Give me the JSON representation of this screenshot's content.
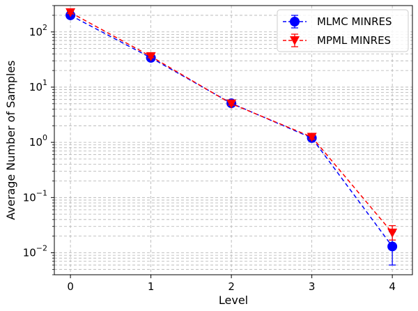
{
  "chart_data": {
    "type": "line",
    "title": "",
    "xlabel": "Level",
    "ylabel": "Average Number of Samples",
    "yscale": "log",
    "grid": true,
    "grid_style": "dashed",
    "legend_position": "top-right",
    "x": [
      0,
      1,
      2,
      3,
      4
    ],
    "x_ticks": [
      "0",
      "1",
      "2",
      "3",
      "4"
    ],
    "xlim": [
      -0.2,
      4.25
    ],
    "ylim": [
      0.004,
      300
    ],
    "y_ticks": [
      {
        "base": "10",
        "exp": "−2",
        "value": 0.01
      },
      {
        "base": "10",
        "exp": "−1",
        "value": 0.1
      },
      {
        "base": "10",
        "exp": "0",
        "value": 1
      },
      {
        "base": "10",
        "exp": "1",
        "value": 10
      },
      {
        "base": "10",
        "exp": "2",
        "value": 100
      }
    ],
    "series": [
      {
        "name": "MLMC MINRES",
        "color": "#0000ff",
        "marker": "circle",
        "linestyle": "dashed",
        "values": [
          200,
          34,
          5.1,
          1.2,
          0.013
        ],
        "err_low": [
          190,
          32,
          4.8,
          1.1,
          0.006
        ],
        "err_high": [
          212,
          36,
          5.4,
          1.3,
          0.024
        ]
      },
      {
        "name": "MPML MINRES",
        "color": "#ff0000",
        "marker": "triangle-down",
        "linestyle": "dashed",
        "values": [
          225,
          36,
          5.0,
          1.25,
          0.023
        ],
        "err_low": [
          215,
          34,
          4.7,
          1.15,
          0.017
        ],
        "err_high": [
          235,
          38,
          5.3,
          1.35,
          0.031
        ]
      }
    ]
  }
}
